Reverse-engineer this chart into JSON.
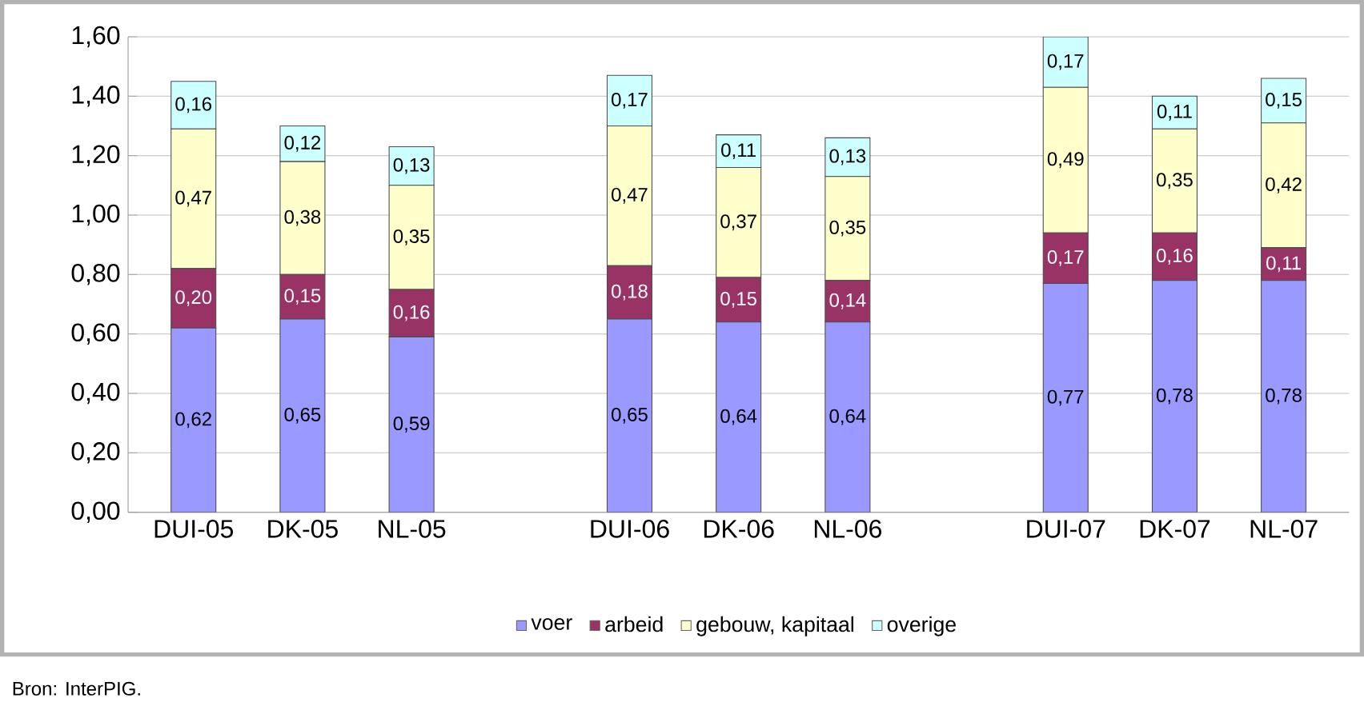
{
  "chart_data": {
    "type": "bar",
    "stacked": true,
    "categories": [
      "DUI-05",
      "DK-05",
      "NL-05",
      null,
      "DUI-06",
      "DK-06",
      "NL-06",
      null,
      "DUI-07",
      "DK-07",
      "NL-07"
    ],
    "series": [
      {
        "name": "voer",
        "color": "#9999ff",
        "values": [
          0.62,
          0.65,
          0.59,
          null,
          0.65,
          0.64,
          0.64,
          null,
          0.77,
          0.78,
          0.78
        ],
        "value_labels": [
          "0,62",
          "0,65",
          "0,59",
          null,
          "0,65",
          "0,64",
          "0,64",
          null,
          "0,77",
          "0,78",
          "0,78"
        ]
      },
      {
        "name": "arbeid",
        "color": "#993366",
        "values": [
          0.2,
          0.15,
          0.16,
          null,
          0.18,
          0.15,
          0.14,
          null,
          0.17,
          0.16,
          0.11
        ],
        "value_labels": [
          "0,20",
          "0,15",
          "0,16",
          null,
          "0,18",
          "0,15",
          "0,14",
          null,
          "0,17",
          "0,16",
          "0,11"
        ]
      },
      {
        "name": "gebouw, kapitaal",
        "color": "#ffffcc",
        "values": [
          0.47,
          0.38,
          0.35,
          null,
          0.47,
          0.37,
          0.35,
          null,
          0.49,
          0.35,
          0.42
        ],
        "value_labels": [
          "0,47",
          "0,38",
          "0,35",
          null,
          "0,47",
          "0,37",
          "0,35",
          null,
          "0,49",
          "0,35",
          "0,42"
        ]
      },
      {
        "name": "overige",
        "color": "#ccffff",
        "values": [
          0.16,
          0.12,
          0.13,
          null,
          0.17,
          0.11,
          0.13,
          null,
          0.17,
          0.11,
          0.15
        ],
        "value_labels": [
          "0,16",
          "0,12",
          "0,13",
          null,
          "0,17",
          "0,11",
          "0,13",
          null,
          "0,17",
          "0,11",
          "0,15"
        ]
      }
    ],
    "ylim": [
      0,
      1.6
    ],
    "yticks": [
      {
        "value": 0,
        "label": "0,00"
      },
      {
        "value": 0.2,
        "label": "0,20"
      },
      {
        "value": 0.4,
        "label": "0,40"
      },
      {
        "value": 0.6,
        "label": "0,60"
      },
      {
        "value": 0.8,
        "label": "0,80"
      },
      {
        "value": 1.0,
        "label": "1,00"
      },
      {
        "value": 1.2,
        "label": "1,20"
      },
      {
        "value": 1.4,
        "label": "1,40"
      },
      {
        "value": 1.6,
        "label": "1,60"
      }
    ],
    "grid": "y",
    "legend": "bottom",
    "marker": "square",
    "annotations": [
      "Bron: InterPIG."
    ]
  }
}
